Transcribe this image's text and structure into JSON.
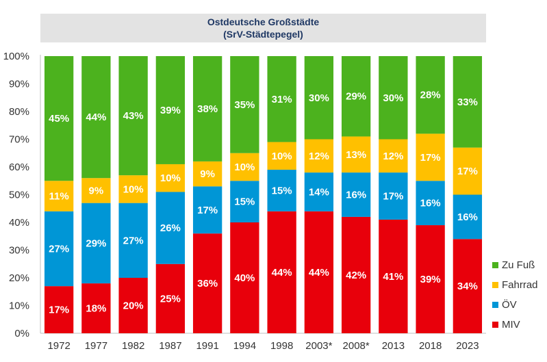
{
  "chart_data": {
    "type": "bar",
    "stacked": true,
    "title": "Ostdeutsche Großstädte",
    "subtitle": "(SrV-Städtepegel)",
    "categories": [
      "1972",
      "1977",
      "1982",
      "1987",
      "1991",
      "1994",
      "1998",
      "2003*",
      "2008*",
      "2013",
      "2018",
      "2023"
    ],
    "series": [
      {
        "name": "MIV",
        "color": "#e8000b",
        "values": [
          17,
          18,
          20,
          25,
          36,
          40,
          44,
          44,
          42,
          41,
          39,
          34
        ]
      },
      {
        "name": "ÖV",
        "color": "#0096d6",
        "values": [
          27,
          29,
          27,
          26,
          17,
          15,
          15,
          14,
          16,
          17,
          16,
          16
        ]
      },
      {
        "name": "Fahrrad",
        "color": "#ffc000",
        "values": [
          11,
          9,
          10,
          10,
          9,
          10,
          10,
          12,
          13,
          12,
          17,
          17
        ]
      },
      {
        "name": "Zu Fuß",
        "color": "#4cb21e",
        "values": [
          45,
          44,
          43,
          39,
          38,
          35,
          31,
          30,
          29,
          30,
          28,
          33
        ]
      }
    ],
    "value_suffix": "%",
    "ylim": [
      0,
      100
    ],
    "yticks": [
      "0%",
      "10%",
      "20%",
      "30%",
      "40%",
      "50%",
      "60%",
      "70%",
      "80%",
      "90%",
      "100%"
    ],
    "grid": false,
    "legend_position": "right",
    "legend_order": [
      "Zu Fuß",
      "Fahrrad",
      "ÖV",
      "MIV"
    ]
  }
}
